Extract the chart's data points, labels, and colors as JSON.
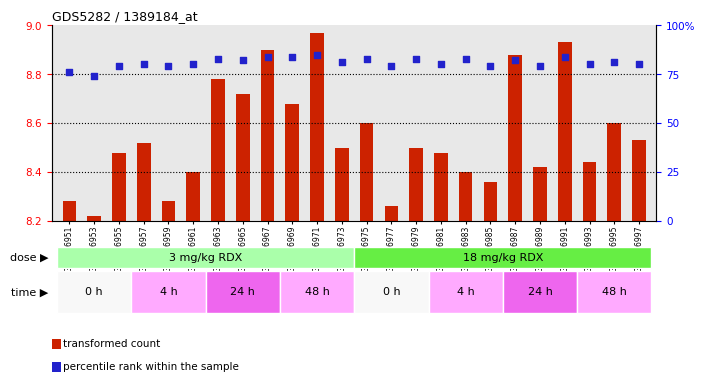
{
  "title": "GDS5282 / 1389184_at",
  "samples": [
    "GSM306951",
    "GSM306953",
    "GSM306955",
    "GSM306957",
    "GSM306959",
    "GSM306961",
    "GSM306963",
    "GSM306965",
    "GSM306967",
    "GSM306969",
    "GSM306971",
    "GSM306973",
    "GSM306975",
    "GSM306977",
    "GSM306979",
    "GSM306981",
    "GSM306983",
    "GSM306985",
    "GSM306987",
    "GSM306989",
    "GSM306991",
    "GSM306993",
    "GSM306995",
    "GSM306997"
  ],
  "bar_values": [
    8.28,
    8.22,
    8.48,
    8.52,
    8.28,
    8.4,
    8.78,
    8.72,
    8.9,
    8.68,
    8.97,
    8.5,
    8.6,
    8.26,
    8.5,
    8.48,
    8.4,
    8.36,
    8.88,
    8.42,
    8.93,
    8.44,
    8.6,
    8.53
  ],
  "percentile_values": [
    76,
    74,
    79,
    80,
    79,
    80,
    83,
    82,
    84,
    84,
    85,
    81,
    83,
    79,
    83,
    80,
    83,
    79,
    82,
    79,
    84,
    80,
    81,
    80
  ],
  "bar_color": "#cc2200",
  "percentile_color": "#2222cc",
  "bar_baseline": 8.2,
  "ylim_left": [
    8.2,
    9.0
  ],
  "ylim_right": [
    0,
    100
  ],
  "yticks_left": [
    8.2,
    8.4,
    8.6,
    8.8,
    9.0
  ],
  "yticks_right": [
    0,
    25,
    50,
    75,
    100
  ],
  "grid_lines": [
    8.4,
    8.6,
    8.8
  ],
  "dose_groups": [
    {
      "label": "3 mg/kg RDX",
      "start": 0,
      "end": 12,
      "color": "#aaffaa"
    },
    {
      "label": "18 mg/kg RDX",
      "start": 12,
      "end": 24,
      "color": "#66ee44"
    }
  ],
  "time_groups": [
    {
      "label": "0 h",
      "start": 0,
      "end": 3,
      "color": "#f8f8f8"
    },
    {
      "label": "4 h",
      "start": 3,
      "end": 6,
      "color": "#ffaaff"
    },
    {
      "label": "24 h",
      "start": 6,
      "end": 9,
      "color": "#ee66ee"
    },
    {
      "label": "48 h",
      "start": 9,
      "end": 12,
      "color": "#ffaaff"
    },
    {
      "label": "0 h",
      "start": 12,
      "end": 15,
      "color": "#f8f8f8"
    },
    {
      "label": "4 h",
      "start": 15,
      "end": 18,
      "color": "#ffaaff"
    },
    {
      "label": "24 h",
      "start": 18,
      "end": 21,
      "color": "#ee66ee"
    },
    {
      "label": "48 h",
      "start": 21,
      "end": 24,
      "color": "#ffaaff"
    }
  ],
  "dose_label": "dose",
  "time_label": "time",
  "legend_bar": "transformed count",
  "legend_pct": "percentile rank within the sample",
  "bg_color": "#e8e8e8",
  "n_samples": 24
}
